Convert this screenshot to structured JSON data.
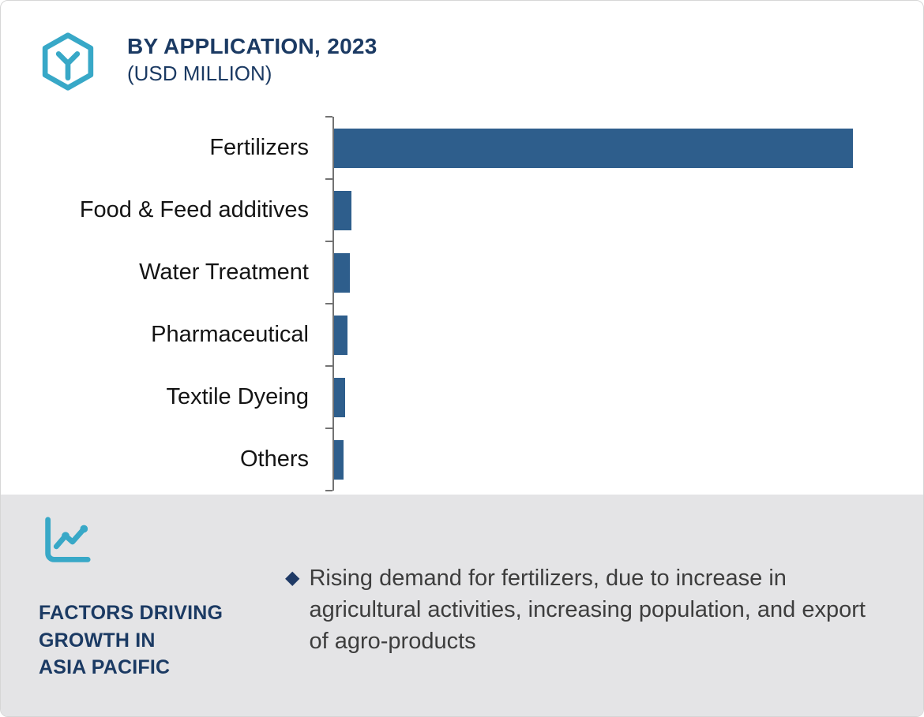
{
  "header": {
    "title": "BY APPLICATION, 2023",
    "subtitle": "(USD MILLION)"
  },
  "colors": {
    "accent_teal": "#38a8c7",
    "navy": "#1b3a63",
    "bar_navy": "#2e5e8c",
    "footer_bg": "#e4e4e6",
    "axis_gray": "#737373"
  },
  "chart_data": {
    "type": "bar",
    "orientation": "horizontal",
    "title": "BY APPLICATION, 2023 (USD MILLION)",
    "categories": [
      "Fertilizers",
      "Food & Feed additives",
      "Water Treatment",
      "Pharmaceutical",
      "Textile Dyeing",
      "Others"
    ],
    "values": [
      100,
      3.4,
      3.0,
      2.6,
      2.1,
      1.8
    ],
    "xlabel": "",
    "ylabel": "",
    "value_labels_shown": false,
    "grid": false,
    "legend": false,
    "bar_color": "#2e5e8c"
  },
  "footer": {
    "heading_lines": [
      "FACTORS DRIVING",
      "GROWTH IN",
      "ASIA PACIFIC"
    ],
    "bullet": {
      "marker": "◆",
      "text": "Rising demand for fertilizers, due to increase in agricultural activities, increasing population, and export of agro-products"
    }
  }
}
